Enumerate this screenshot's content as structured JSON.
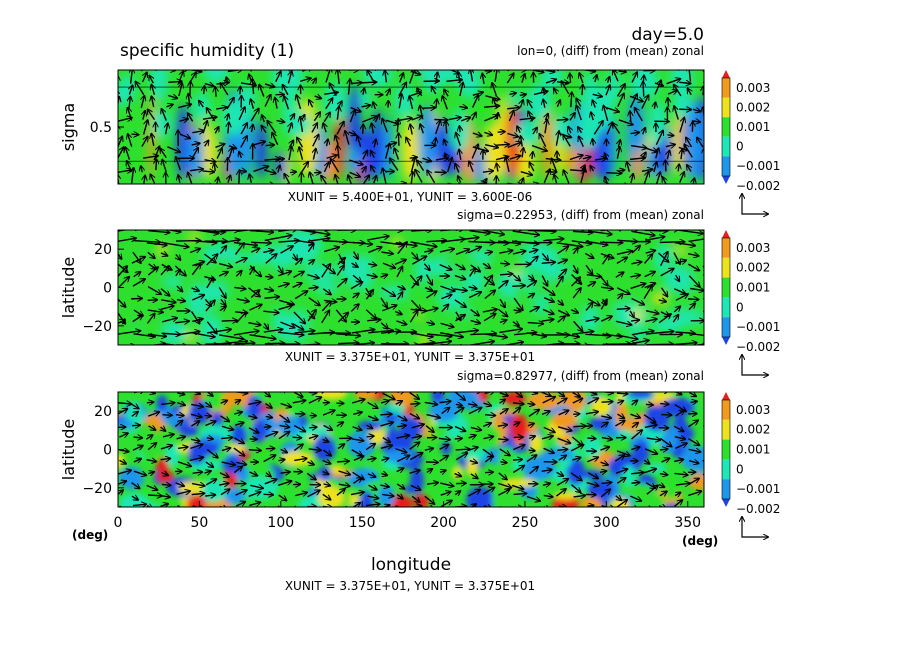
{
  "header": {
    "day_label": "day=5.0",
    "title": "specific humidity (1)"
  },
  "colors": {
    "levels": [
      "#1e44e6",
      "#1e96ec",
      "#1ee6b4",
      "#2ee02e",
      "#ece21e",
      "#f09a1e",
      "#e61e1e"
    ]
  },
  "chart_data": [
    {
      "type": "heatmap",
      "panel": "top",
      "subtitle": "lon=0, (diff) from (mean) zonal",
      "xlabel": "",
      "ylabel": "sigma",
      "xlim": [
        0,
        360
      ],
      "ylim": [
        0,
        1
      ],
      "y_ticks": [
        0.5
      ],
      "y_tick_labels": [
        "0.5"
      ],
      "x_ticks": [],
      "units_text": "XUNIT = 5.400E+01, YUNIT = 3.600E-06",
      "colorbar": {
        "levels": [
          "0.003",
          "0.002",
          "0.001",
          "0",
          "−0.001",
          "−0.002"
        ]
      },
      "vectors": true
    },
    {
      "type": "heatmap",
      "panel": "middle",
      "subtitle": "sigma=0.22953, (diff) from (mean) zonal",
      "xlabel": "",
      "ylabel": "latitude",
      "xlim": [
        0,
        360
      ],
      "ylim": [
        -30,
        30
      ],
      "y_ticks": [
        20,
        0,
        -20
      ],
      "y_tick_labels": [
        "20",
        "0",
        "−20"
      ],
      "x_ticks": [],
      "units_text": "XUNIT = 3.375E+01, YUNIT = 3.375E+01",
      "colorbar": {
        "levels": [
          "0.003",
          "0.002",
          "0.001",
          "0",
          "−0.001",
          "−0.002"
        ]
      },
      "vectors": true
    },
    {
      "type": "heatmap",
      "panel": "bottom",
      "subtitle": "sigma=0.82977, (diff) from (mean) zonal",
      "xlabel": "longitude",
      "ylabel": "latitude",
      "xlim": [
        0,
        360
      ],
      "ylim": [
        -30,
        30
      ],
      "y_ticks": [
        20,
        0,
        -20
      ],
      "y_tick_labels": [
        "20",
        "0",
        "−20"
      ],
      "x_ticks": [
        0,
        50,
        100,
        150,
        200,
        250,
        300,
        350
      ],
      "x_tick_labels": [
        "0",
        "50",
        "100",
        "150",
        "200",
        "250",
        "300",
        "350"
      ],
      "x_unit_left": "(deg)",
      "x_unit_right": "(deg)",
      "units_text": "XUNIT = 3.375E+01, YUNIT = 3.375E+01",
      "colorbar": {
        "levels": [
          "0.003",
          "0.002",
          "0.001",
          "0",
          "−0.001",
          "−0.002"
        ]
      },
      "vectors": true
    }
  ]
}
